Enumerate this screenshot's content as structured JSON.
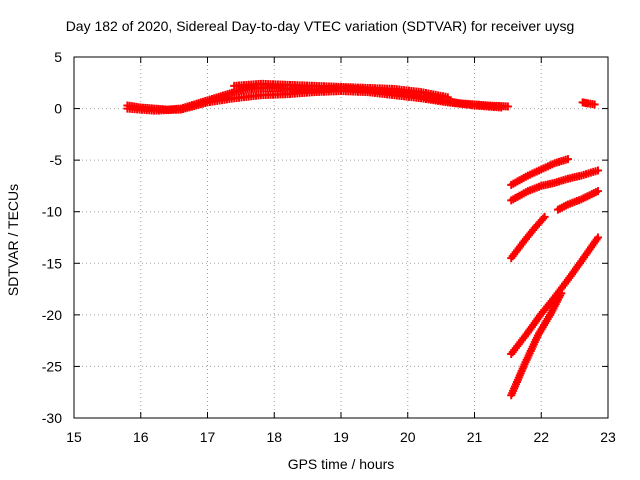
{
  "chart_data": {
    "type": "scatter",
    "title": "Day 182 of 2020, Sidereal Day-to-day VTEC variation (SDTVAR) for receiver uysg",
    "xlabel": "GPS time / hours",
    "ylabel": "SDTVAR / TECUs",
    "xlim": [
      15,
      23
    ],
    "ylim": [
      -30,
      5
    ],
    "xticks": [
      "15",
      "16",
      "17",
      "18",
      "19",
      "20",
      "21",
      "22",
      "23"
    ],
    "yticks": [
      "5",
      "0",
      "-5",
      "-10",
      "-15",
      "-20",
      "-25",
      "-30"
    ],
    "grid": true,
    "legend": "none",
    "marker": "+",
    "series_color": "#ff0000",
    "series": [
      {
        "x": [
          15.8,
          16.0,
          16.2,
          16.4,
          16.6,
          16.8,
          17.0,
          17.2,
          17.4,
          17.6,
          17.8,
          18.0,
          18.2,
          18.4,
          18.6,
          18.8,
          19.0,
          19.2,
          19.4,
          19.6,
          19.8,
          20.0,
          20.2,
          20.4,
          20.6,
          20.8,
          21.0,
          21.2,
          21.5
        ],
        "y": [
          0.3,
          0.1,
          0.0,
          -0.1,
          0.0,
          0.4,
          0.8,
          1.2,
          1.6,
          1.9,
          2.0,
          2.0,
          1.9,
          1.8,
          1.8,
          1.9,
          2.0,
          1.9,
          1.8,
          1.7,
          1.6,
          1.4,
          1.2,
          0.9,
          0.7,
          0.5,
          0.4,
          0.3,
          0.2
        ]
      },
      {
        "x": [
          15.8,
          16.2,
          16.6,
          17.0,
          17.4,
          17.8,
          18.2,
          18.6,
          19.0,
          19.4,
          19.8,
          20.2,
          20.6,
          21.0,
          21.4
        ],
        "y": [
          0.0,
          -0.2,
          -0.1,
          0.6,
          1.0,
          1.3,
          1.4,
          1.6,
          1.7,
          1.6,
          1.3,
          1.0,
          0.6,
          0.3,
          0.1
        ]
      },
      {
        "x": [
          17.4,
          17.8,
          18.2,
          18.6,
          19.0,
          19.4,
          19.8,
          20.2,
          20.6
        ],
        "y": [
          2.2,
          2.4,
          2.3,
          2.2,
          2.1,
          2.0,
          1.9,
          1.6,
          1.1
        ]
      },
      {
        "x": [
          22.62,
          22.7,
          22.8
        ],
        "y": [
          0.6,
          0.5,
          0.4
        ]
      },
      {
        "x": [
          21.55,
          21.8,
          22.0,
          22.2,
          22.4
        ],
        "y": [
          -7.4,
          -6.5,
          -5.9,
          -5.3,
          -4.9
        ]
      },
      {
        "x": [
          21.55,
          21.8,
          22.0,
          22.2,
          22.4,
          22.6,
          22.85
        ],
        "y": [
          -8.9,
          -8.0,
          -7.5,
          -7.2,
          -6.8,
          -6.5,
          -6.0
        ]
      },
      {
        "x": [
          22.25,
          22.4,
          22.6,
          22.85
        ],
        "y": [
          -9.8,
          -9.3,
          -8.8,
          -8.0
        ]
      },
      {
        "x": [
          21.55,
          21.75,
          21.9,
          22.05
        ],
        "y": [
          -14.5,
          -12.8,
          -11.6,
          -10.5
        ]
      },
      {
        "x": [
          21.55,
          21.8,
          22.0,
          22.2,
          22.4,
          22.6,
          22.85
        ],
        "y": [
          -23.8,
          -21.7,
          -19.9,
          -18.3,
          -16.6,
          -14.8,
          -12.5
        ]
      },
      {
        "x": [
          21.55,
          21.75,
          21.95,
          22.15,
          22.3
        ],
        "y": [
          -27.8,
          -24.8,
          -22.0,
          -19.8,
          -17.9
        ]
      }
    ]
  }
}
